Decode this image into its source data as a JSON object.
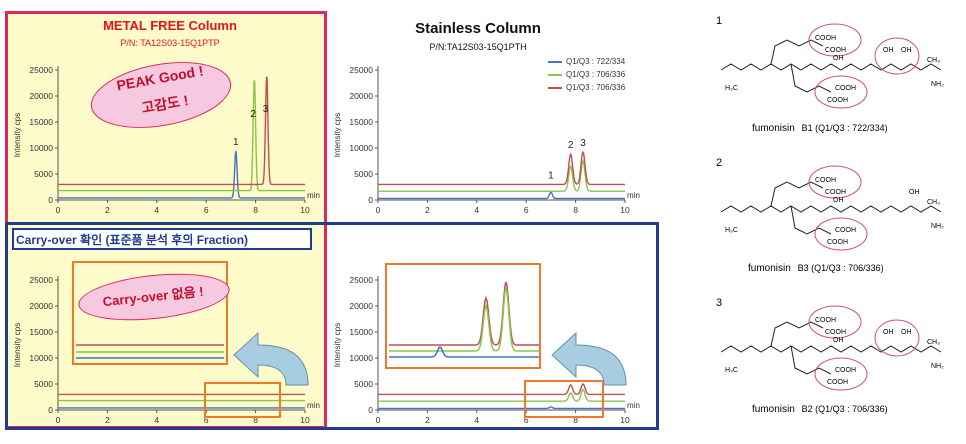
{
  "metal_panel": {
    "title": "METAL FREE Column",
    "part_number": "P/N: TA12S03-15Q1PTP",
    "badge_line1": "PEAK Good !",
    "badge_line2": "고감도 !"
  },
  "stainless_panel": {
    "title": "Stainless Column",
    "part_number": "P/N:TA12S03-15Q1PTH"
  },
  "carryover": {
    "banner": "Carry-over 확인 (표준품 분석 후의 Fraction)",
    "badge": "Carry-over 없음 !"
  },
  "legend": [
    "Q1/Q3 : 722/334",
    "Q1/Q3 : 706/336",
    "Q1/Q3 : 706/336"
  ],
  "colors": {
    "series1": "#4472c4",
    "series2": "#8dc34a",
    "series3": "#c0504d",
    "metal_bg": "#fdfbc9",
    "metal_border": "#e0245e",
    "carry_border": "#1f3c8f",
    "zoom_box": "#f0782a",
    "badge_fill": "#f6c9e0"
  },
  "structures": [
    {
      "number": "1",
      "name": "fumonisin",
      "detail": "B1 (Q1/Q3 : 722/334)"
    },
    {
      "number": "2",
      "name": "fumonisin",
      "detail": "B3 (Q1/Q3 : 706/336)"
    },
    {
      "number": "3",
      "name": "fumonisin",
      "detail": "B2 (Q1/Q3 : 706/336)"
    }
  ],
  "chem_labels": {
    "cooh": "COOH",
    "oh": "OH",
    "nh2": "NH",
    "h3c": "H3C",
    "ch3": "CH3"
  },
  "chart_data": [
    {
      "type": "line",
      "id": "metal-free-standard",
      "title": "METAL FREE Column",
      "xlabel": "min",
      "ylabel": "Intensity cps",
      "xlim": [
        0,
        10
      ],
      "ylim": [
        0,
        25000
      ],
      "xticks": [
        "0",
        "2",
        "4",
        "6",
        "8",
        "10"
      ],
      "yticks": [
        "0",
        "5000",
        "10000",
        "15000",
        "20000",
        "25000"
      ],
      "peak_labels": [
        {
          "text": "1",
          "x": 7.2
        },
        {
          "text": "2",
          "x": 7.9
        },
        {
          "text": "3",
          "x": 8.4
        }
      ],
      "series": [
        {
          "name": "Q1/Q3 : 722/334",
          "baseline": 400,
          "peaks": [
            {
              "x": 7.2,
              "height": 9000,
              "width": 0.05
            }
          ]
        },
        {
          "name": "Q1/Q3 : 706/336",
          "baseline": 1800,
          "peaks": [
            {
              "x": 7.95,
              "height": 21500,
              "width": 0.05
            }
          ]
        },
        {
          "name": "Q1/Q3 : 706/336",
          "baseline": 3000,
          "peaks": [
            {
              "x": 8.45,
              "height": 21000,
              "width": 0.05
            }
          ]
        }
      ]
    },
    {
      "type": "line",
      "id": "stainless-standard",
      "title": "Stainless Column",
      "xlabel": "min",
      "ylabel": "Intensity cps",
      "xlim": [
        0,
        10
      ],
      "ylim": [
        0,
        25000
      ],
      "xticks": [
        "0",
        "2",
        "4",
        "6",
        "8",
        "10"
      ],
      "yticks": [
        "0",
        "5000",
        "10000",
        "15000",
        "20000",
        "25000"
      ],
      "peak_labels": [
        {
          "text": "1",
          "x": 7.0
        },
        {
          "text": "2",
          "x": 7.8
        },
        {
          "text": "3",
          "x": 8.3
        }
      ],
      "series": [
        {
          "name": "Q1/Q3 : 722/334",
          "baseline": 300,
          "peaks": [
            {
              "x": 7.0,
              "height": 1200,
              "width": 0.06
            }
          ]
        },
        {
          "name": "Q1/Q3 : 706/336",
          "baseline": 1700,
          "peaks": [
            {
              "x": 7.8,
              "height": 4800,
              "width": 0.08
            },
            {
              "x": 8.3,
              "height": 5800,
              "width": 0.08
            }
          ]
        },
        {
          "name": "Q1/Q3 : 706/336",
          "baseline": 3000,
          "peaks": [
            {
              "x": 7.8,
              "height": 5800,
              "width": 0.08
            },
            {
              "x": 8.3,
              "height": 6200,
              "width": 0.08
            }
          ]
        }
      ]
    },
    {
      "type": "line",
      "id": "metal-free-carryover",
      "xlabel": "min",
      "ylabel": "Intensity cps",
      "xlim": [
        0,
        10
      ],
      "ylim": [
        0,
        25000
      ],
      "xticks": [
        "0",
        "2",
        "4",
        "6",
        "8",
        "10"
      ],
      "yticks": [
        "0",
        "5000",
        "10000",
        "15000",
        "20000",
        "25000"
      ],
      "series": [
        {
          "name": "Q1/Q3 : 722/334",
          "baseline": 400,
          "peaks": []
        },
        {
          "name": "Q1/Q3 : 706/336",
          "baseline": 1800,
          "peaks": []
        },
        {
          "name": "Q1/Q3 : 706/336",
          "baseline": 3000,
          "peaks": []
        }
      ]
    },
    {
      "type": "line",
      "id": "stainless-carryover",
      "xlabel": "min",
      "ylabel": "Intensity cps",
      "xlim": [
        0,
        10
      ],
      "ylim": [
        0,
        25000
      ],
      "xticks": [
        "0",
        "2",
        "4",
        "6",
        "8",
        "10"
      ],
      "yticks": [
        "0",
        "5000",
        "10000",
        "15000",
        "20000",
        "25000"
      ],
      "series": [
        {
          "name": "Q1/Q3 : 722/334",
          "baseline": 300,
          "peaks": [
            {
              "x": 7.0,
              "height": 300,
              "width": 0.06
            }
          ]
        },
        {
          "name": "Q1/Q3 : 706/336",
          "baseline": 1700,
          "peaks": [
            {
              "x": 7.8,
              "height": 1600,
              "width": 0.08
            },
            {
              "x": 8.3,
              "height": 2200,
              "width": 0.08
            }
          ]
        },
        {
          "name": "Q1/Q3 : 706/336",
          "baseline": 3000,
          "peaks": [
            {
              "x": 7.8,
              "height": 1800,
              "width": 0.08
            },
            {
              "x": 8.3,
              "height": 2000,
              "width": 0.08
            }
          ]
        }
      ]
    }
  ]
}
